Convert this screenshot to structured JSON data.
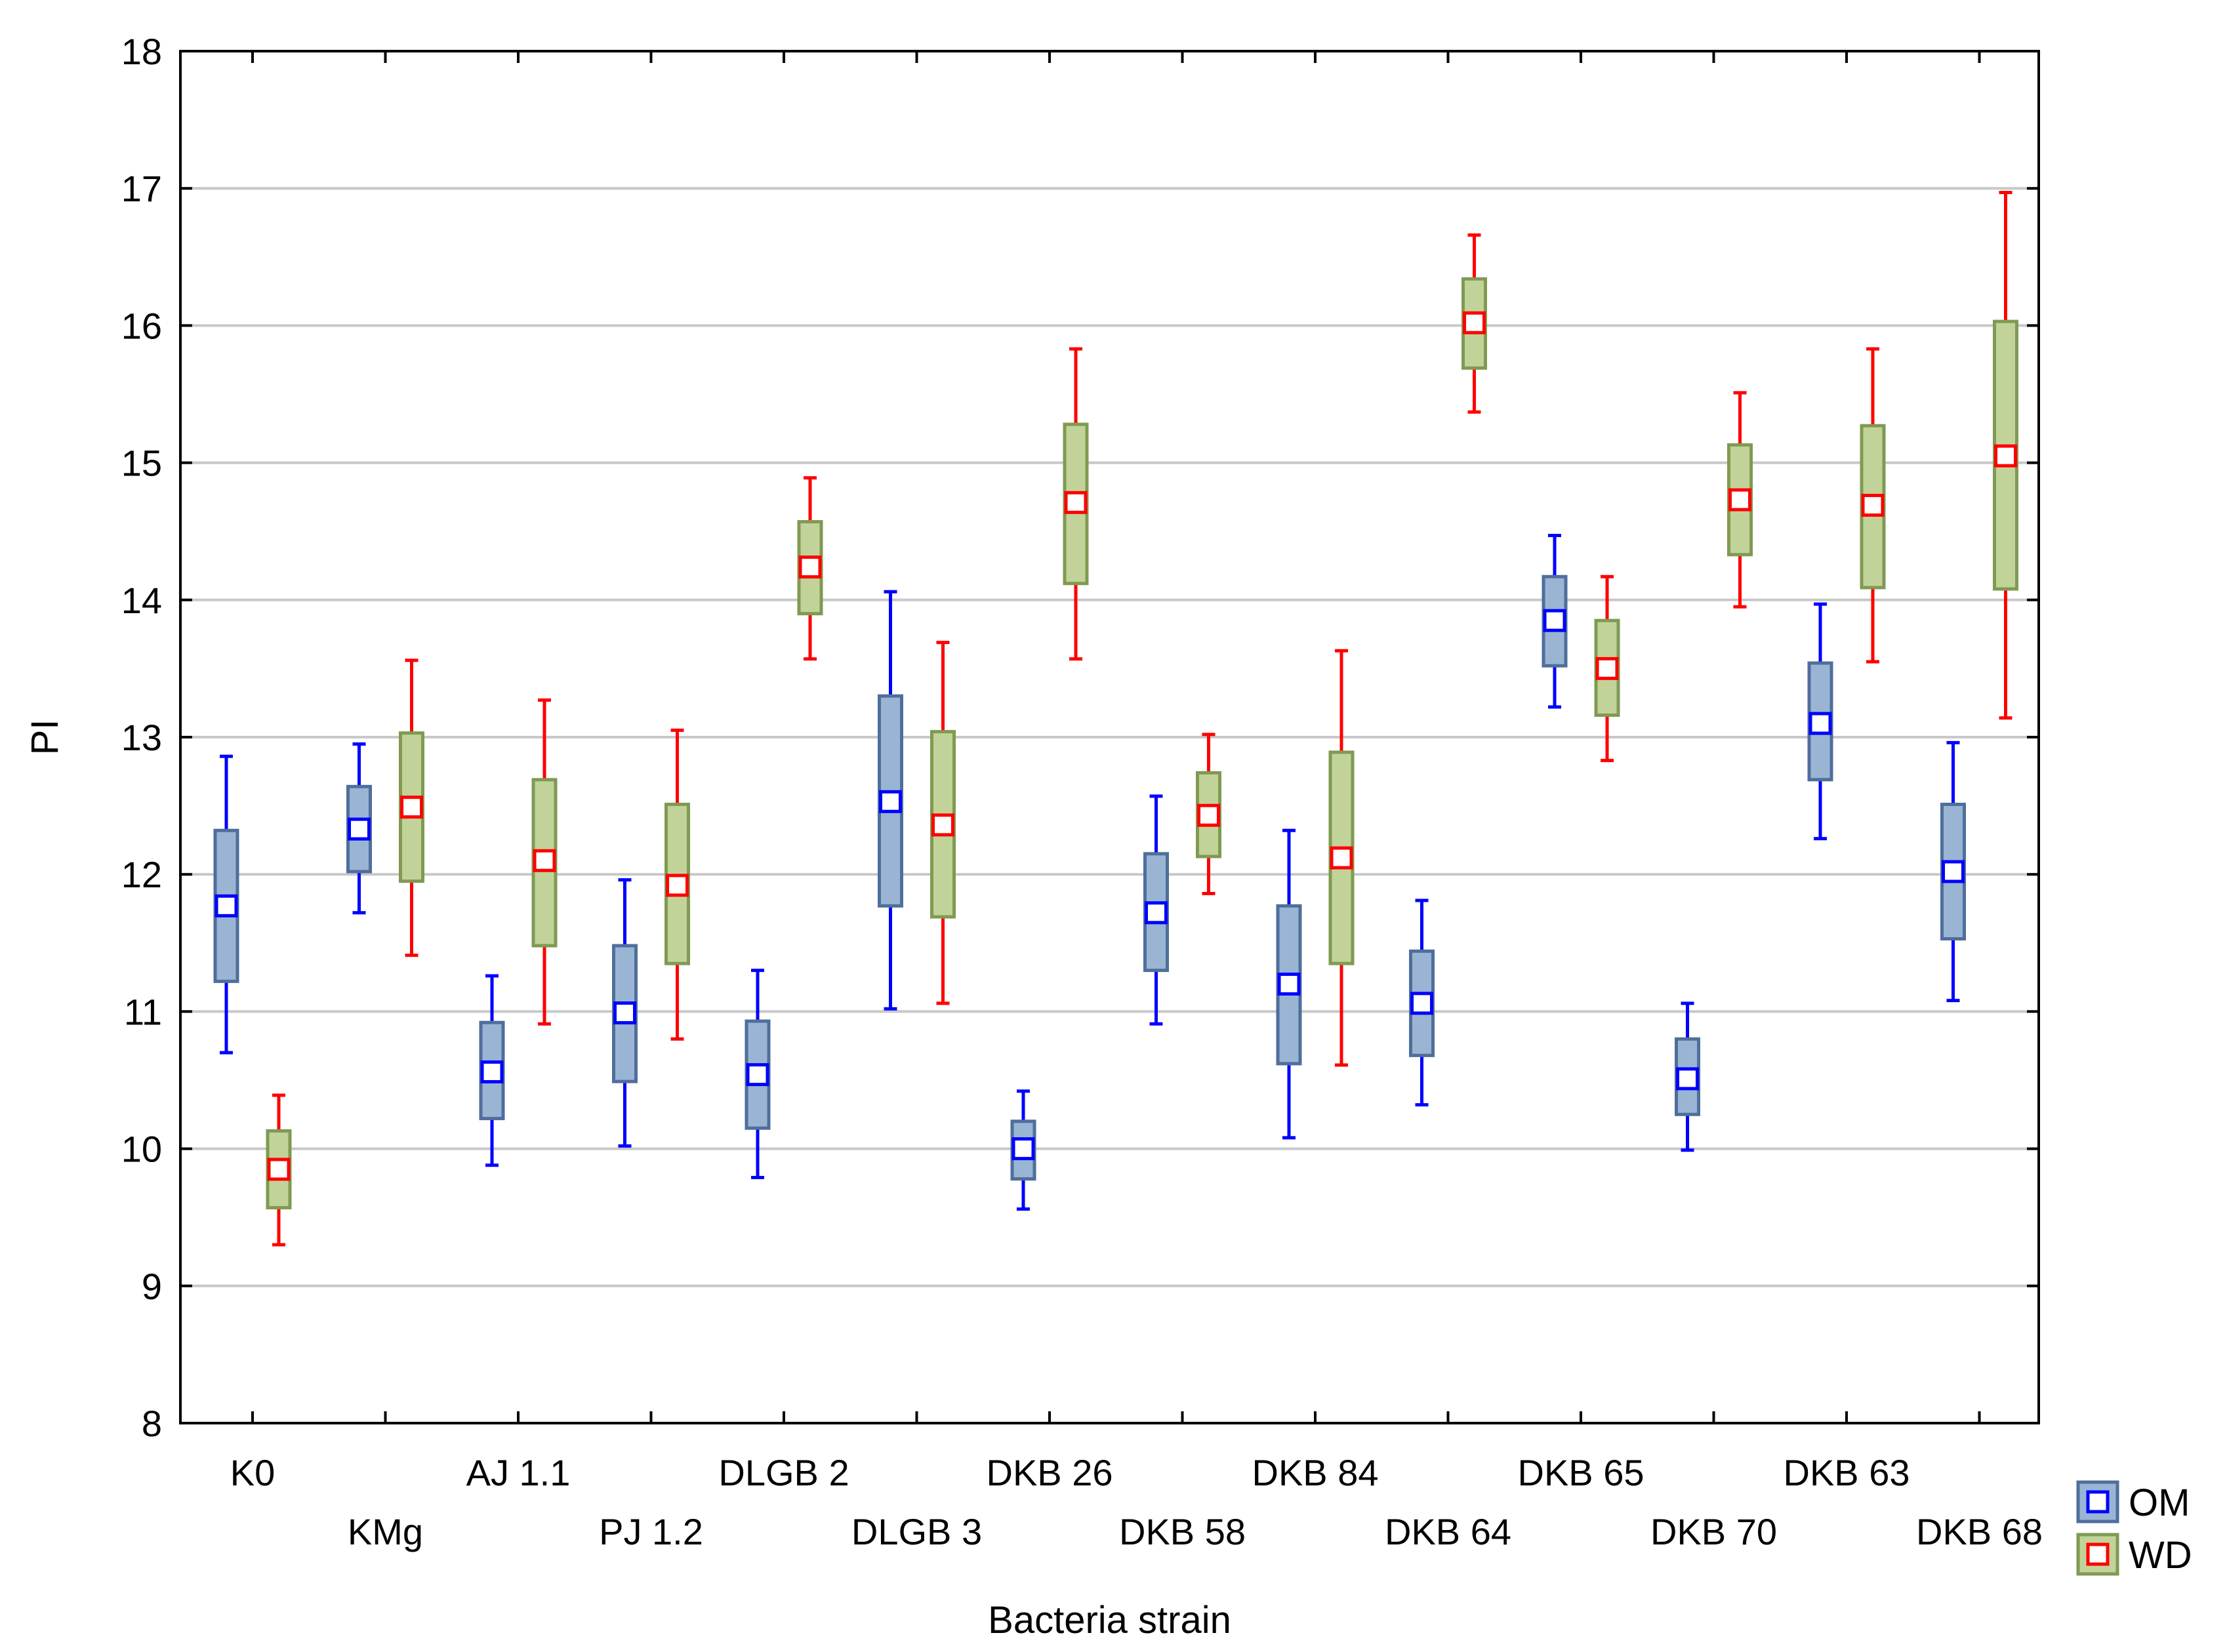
{
  "chart_data": {
    "type": "box",
    "title": "",
    "xlabel": "Bacteria strain",
    "ylabel": "PI",
    "ylim": [
      8,
      18
    ],
    "yticks": [
      8,
      9,
      10,
      11,
      12,
      13,
      14,
      15,
      16,
      17,
      18
    ],
    "grid": true,
    "legend_position": "bottom-right",
    "categories": [
      "K0",
      "KMg",
      "AJ 1.1",
      "PJ 1.2",
      "DLGB 2",
      "DLGB 3",
      "DKB 26",
      "DKB 58",
      "DKB 84",
      "DKB 64",
      "DKB 65",
      "DKB 70",
      "DKB 63",
      "DKB 68"
    ],
    "series": [
      {
        "name": "OM",
        "box_fill": "#9ab4d4",
        "box_stroke": "#4f6e9c",
        "marker_color": "#0000ff",
        "whisker_color": "#0000ff",
        "stats": [
          {
            "mean": 11.77,
            "box_low": 11.22,
            "box_high": 12.32,
            "whisker_low": 10.7,
            "whisker_high": 12.86
          },
          {
            "mean": 12.33,
            "box_low": 12.02,
            "box_high": 12.64,
            "whisker_low": 11.72,
            "whisker_high": 12.95
          },
          {
            "mean": 10.56,
            "box_low": 10.22,
            "box_high": 10.92,
            "whisker_low": 9.88,
            "whisker_high": 11.26
          },
          {
            "mean": 10.99,
            "box_low": 10.49,
            "box_high": 11.48,
            "whisker_low": 10.02,
            "whisker_high": 11.96
          },
          {
            "mean": 10.54,
            "box_low": 10.15,
            "box_high": 10.93,
            "whisker_low": 9.79,
            "whisker_high": 11.3
          },
          {
            "mean": 12.53,
            "box_low": 11.77,
            "box_high": 13.3,
            "whisker_low": 11.02,
            "whisker_high": 14.06
          },
          {
            "mean": 10.0,
            "box_low": 9.78,
            "box_high": 10.2,
            "whisker_low": 9.56,
            "whisker_high": 10.42
          },
          {
            "mean": 11.72,
            "box_low": 11.3,
            "box_high": 12.15,
            "whisker_low": 10.91,
            "whisker_high": 12.57
          },
          {
            "mean": 11.2,
            "box_low": 10.62,
            "box_high": 11.77,
            "whisker_low": 10.08,
            "whisker_high": 12.32
          },
          {
            "mean": 11.06,
            "box_low": 10.68,
            "box_high": 11.44,
            "whisker_low": 10.32,
            "whisker_high": 11.81
          },
          {
            "mean": 13.85,
            "box_low": 13.52,
            "box_high": 14.17,
            "whisker_low": 13.22,
            "whisker_high": 14.47
          },
          {
            "mean": 10.51,
            "box_low": 10.25,
            "box_high": 10.8,
            "whisker_low": 9.99,
            "whisker_high": 11.06
          },
          {
            "mean": 13.1,
            "box_low": 12.69,
            "box_high": 13.54,
            "whisker_low": 12.26,
            "whisker_high": 13.97
          },
          {
            "mean": 12.02,
            "box_low": 11.53,
            "box_high": 12.51,
            "whisker_low": 11.08,
            "whisker_high": 12.96
          }
        ]
      },
      {
        "name": "WD",
        "box_fill": "#c2d39a",
        "box_stroke": "#7f9a52",
        "marker_color": "#ff0000",
        "whisker_color": "#ff0000",
        "stats": [
          {
            "mean": 9.85,
            "box_low": 9.57,
            "box_high": 10.13,
            "whisker_low": 9.3,
            "whisker_high": 10.39
          },
          {
            "mean": 12.49,
            "box_low": 11.95,
            "box_high": 13.03,
            "whisker_low": 11.41,
            "whisker_high": 13.56
          },
          {
            "mean": 12.1,
            "box_low": 11.48,
            "box_high": 12.69,
            "whisker_low": 10.91,
            "whisker_high": 13.27
          },
          {
            "mean": 11.92,
            "box_low": 11.35,
            "box_high": 12.51,
            "whisker_low": 10.8,
            "whisker_high": 13.05
          },
          {
            "mean": 14.24,
            "box_low": 13.9,
            "box_high": 14.57,
            "whisker_low": 13.57,
            "whisker_high": 14.89
          },
          {
            "mean": 12.36,
            "box_low": 11.69,
            "box_high": 13.04,
            "whisker_low": 11.06,
            "whisker_high": 13.69
          },
          {
            "mean": 14.71,
            "box_low": 14.12,
            "box_high": 15.28,
            "whisker_low": 13.57,
            "whisker_high": 15.83
          },
          {
            "mean": 12.43,
            "box_low": 12.13,
            "box_high": 12.74,
            "whisker_low": 11.86,
            "whisker_high": 13.02
          },
          {
            "mean": 12.12,
            "box_low": 11.35,
            "box_high": 12.89,
            "whisker_low": 10.61,
            "whisker_high": 13.63
          },
          {
            "mean": 16.02,
            "box_low": 15.69,
            "box_high": 16.34,
            "whisker_low": 15.37,
            "whisker_high": 16.66
          },
          {
            "mean": 13.5,
            "box_low": 13.16,
            "box_high": 13.85,
            "whisker_low": 12.83,
            "whisker_high": 14.17
          },
          {
            "mean": 14.73,
            "box_low": 14.33,
            "box_high": 15.13,
            "whisker_low": 13.95,
            "whisker_high": 15.51
          },
          {
            "mean": 14.69,
            "box_low": 14.09,
            "box_high": 15.27,
            "whisker_low": 13.55,
            "whisker_high": 15.83
          },
          {
            "mean": 15.05,
            "box_low": 14.08,
            "box_high": 16.03,
            "whisker_low": 13.14,
            "whisker_high": 16.97
          }
        ]
      }
    ]
  }
}
